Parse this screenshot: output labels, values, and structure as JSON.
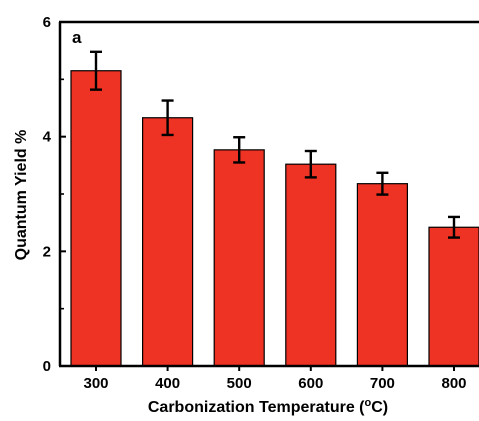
{
  "chart_data": {
    "type": "bar",
    "panel_label": "a",
    "xlabel_main": "Carbonization Temperature (",
    "xlabel_deg": "o",
    "xlabel_end": "C)",
    "ylabel": "Quantum Yield %",
    "categories": [
      "300",
      "400",
      "500",
      "600",
      "700",
      "800"
    ],
    "values": [
      5.15,
      4.33,
      3.77,
      3.52,
      3.18,
      2.42
    ],
    "errors": [
      0.33,
      0.3,
      0.22,
      0.23,
      0.19,
      0.18
    ],
    "ylim": [
      0,
      6
    ],
    "yticks": [
      "0",
      "2",
      "4",
      "6"
    ],
    "bar_color": "#ee3224",
    "edge_color": "#000000",
    "grid": false
  }
}
